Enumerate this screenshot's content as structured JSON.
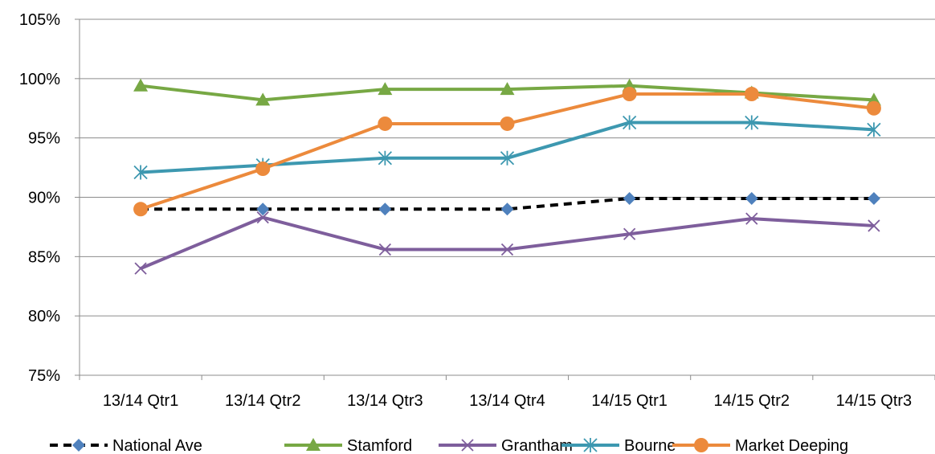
{
  "chart_data": {
    "type": "line",
    "categories": [
      "13/14 Qtr1",
      "13/14 Qtr2",
      "13/14 Qtr3",
      "13/14 Qtr4",
      "14/15 Qtr1",
      "14/15 Qtr2",
      "14/15 Qtr3"
    ],
    "y_ticks": [
      "75%",
      "80%",
      "85%",
      "90%",
      "95%",
      "100%",
      "105%"
    ],
    "ylim": [
      75,
      105
    ],
    "y_unit": "percent",
    "grid": "horizontal",
    "legend_position": "bottom",
    "series": [
      {
        "name": "National Ave",
        "values": [
          89.0,
          89.0,
          89.0,
          89.0,
          89.9,
          89.9,
          89.9
        ],
        "color": "#000000",
        "marker_color": "#4f81bd",
        "marker": "diamond",
        "line_style": "dashed"
      },
      {
        "name": "Stamford",
        "values": [
          99.4,
          98.2,
          99.1,
          99.1,
          99.4,
          98.8,
          98.2
        ],
        "color": "#77a844",
        "marker_color": "#77a844",
        "marker": "triangle",
        "line_style": "solid"
      },
      {
        "name": "Grantham",
        "values": [
          84.0,
          88.3,
          85.6,
          85.6,
          86.9,
          88.2,
          87.6
        ],
        "color": "#7e5e9c",
        "marker_color": "#7e5e9c",
        "marker": "x",
        "line_style": "solid"
      },
      {
        "name": "Bourne",
        "values": [
          92.1,
          92.7,
          93.3,
          93.3,
          96.3,
          96.3,
          95.7
        ],
        "color": "#3d98b0",
        "marker_color": "#3d98b0",
        "marker": "star",
        "line_style": "solid"
      },
      {
        "name": "Market Deeping",
        "values": [
          89.0,
          92.4,
          96.2,
          96.2,
          98.7,
          98.7,
          97.5
        ],
        "color": "#ec8a3c",
        "marker_color": "#ec8a3c",
        "marker": "circle",
        "line_style": "solid"
      }
    ]
  }
}
